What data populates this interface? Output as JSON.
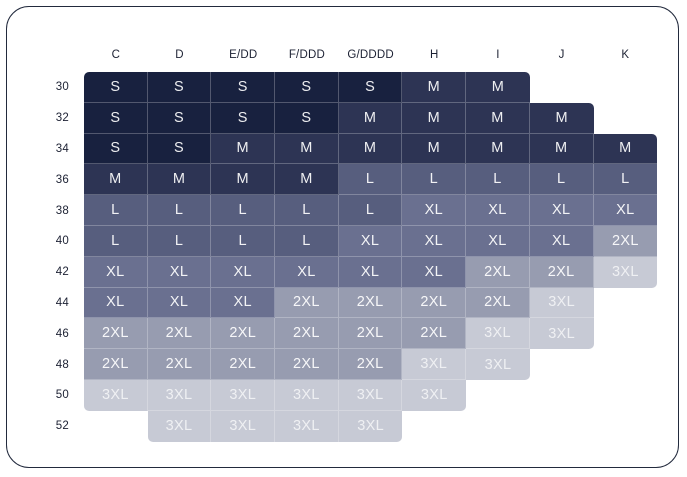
{
  "chart_data": {
    "type": "heatmap",
    "title": "",
    "columns": [
      "C",
      "D",
      "E/DD",
      "F/DDD",
      "G/DDDD",
      "H",
      "I",
      "J",
      "K"
    ],
    "rows": [
      "30",
      "32",
      "34",
      "36",
      "38",
      "40",
      "42",
      "44",
      "46",
      "48",
      "50",
      "52"
    ],
    "values": [
      [
        "S",
        "S",
        "S",
        "S",
        "S",
        "M",
        "M",
        null,
        null
      ],
      [
        "S",
        "S",
        "S",
        "S",
        "M",
        "M",
        "M",
        "M",
        null
      ],
      [
        "S",
        "S",
        "M",
        "M",
        "M",
        "M",
        "M",
        "M",
        "M"
      ],
      [
        "M",
        "M",
        "M",
        "M",
        "L",
        "L",
        "L",
        "L",
        "L"
      ],
      [
        "L",
        "L",
        "L",
        "L",
        "L",
        "XL",
        "XL",
        "XL",
        "XL"
      ],
      [
        "L",
        "L",
        "L",
        "L",
        "XL",
        "XL",
        "XL",
        "XL",
        "2XL"
      ],
      [
        "XL",
        "XL",
        "XL",
        "XL",
        "XL",
        "XL",
        "2XL",
        "2XL",
        "3XL"
      ],
      [
        "XL",
        "XL",
        "XL",
        "2XL",
        "2XL",
        "2XL",
        "2XL",
        "3XL",
        null
      ],
      [
        "2XL",
        "2XL",
        "2XL",
        "2XL",
        "2XL",
        "2XL",
        "3XL",
        "3XL",
        null
      ],
      [
        "2XL",
        "2XL",
        "2XL",
        "2XL",
        "2XL",
        "3XL",
        "3XL",
        null,
        null
      ],
      [
        "3XL",
        "3XL",
        "3XL",
        "3XL",
        "3XL",
        "3XL",
        null,
        null,
        null
      ],
      [
        null,
        "3XL",
        "3XL",
        "3XL",
        "3XL",
        null,
        null,
        null,
        null
      ]
    ],
    "size_scale": [
      "S",
      "M",
      "L",
      "XL",
      "2XL",
      "3XL"
    ],
    "size_colors": {
      "S": "#18213f",
      "M": "#2d3454",
      "L": "#575e7e",
      "XL": "#6a7090",
      "2XL": "#979cb0",
      "3XL": "#c7cad5"
    },
    "cell_text_color": "rgba(255,255,255,0.92)",
    "cell_text_color_3XL": "rgba(255,255,255,0.72)",
    "axis_text_color": "#1c2133",
    "gridline_color": "rgba(255,255,255,0.25)",
    "card_border_color": "#222a3d",
    "legend_position": "none",
    "grid": true
  }
}
